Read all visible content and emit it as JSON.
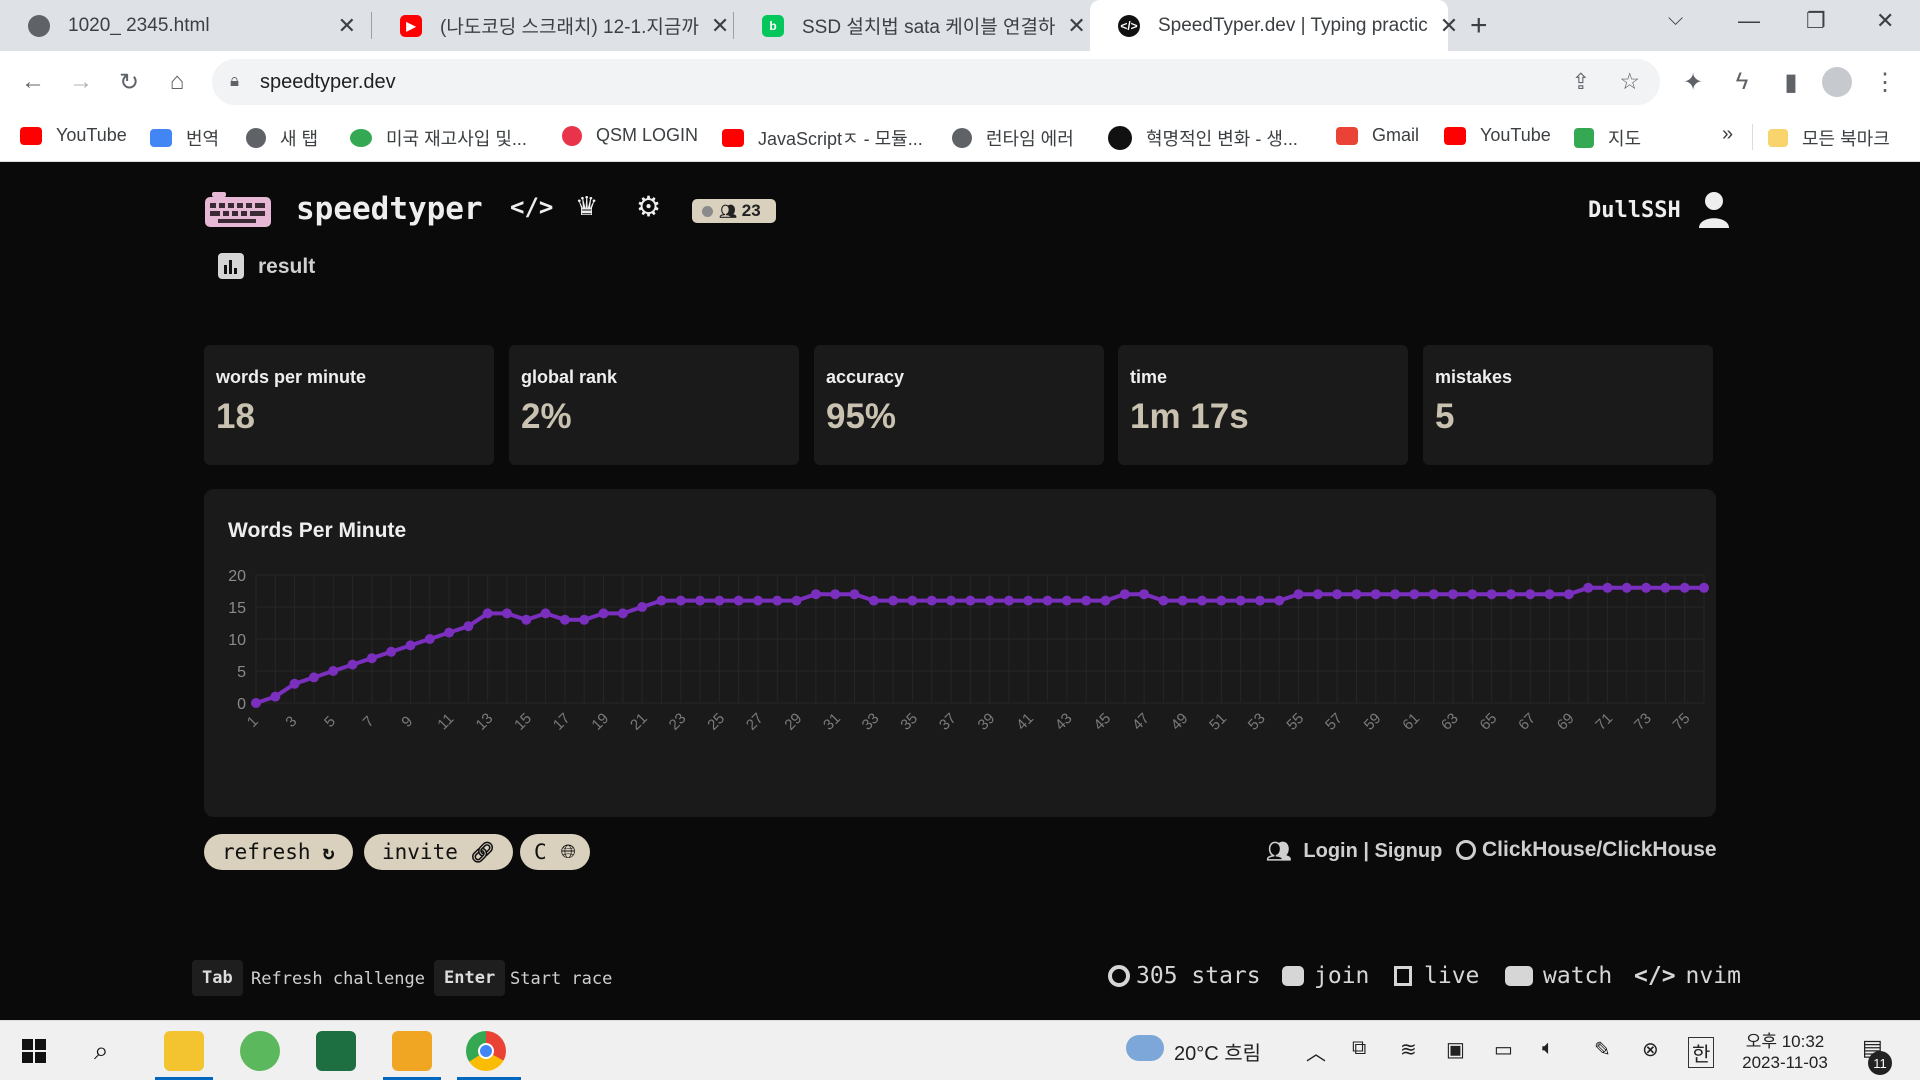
{
  "browser": {
    "tabs": [
      {
        "title": "1020_ 2345.html",
        "icon": "globe-icon"
      },
      {
        "title": "(나도코딩 스크래치) 12-1.지금까",
        "icon": "youtube-icon"
      },
      {
        "title": "SSD 설치법 sata 케이블 연결하",
        "icon": "blog-icon"
      },
      {
        "title": "SpeedTyper.dev | Typing practic",
        "icon": "code-icon"
      }
    ],
    "new_tab": "+",
    "url": "speedtyper.dev",
    "bookmarks": [
      {
        "label": "YouTube",
        "icon": "youtube-icon",
        "color": "#ff0000"
      },
      {
        "label": "번역",
        "icon": "translate-icon",
        "color": "#4285f4"
      },
      {
        "label": "새 탭",
        "icon": "globe-icon",
        "color": "#5f6368"
      },
      {
        "label": "미국 재고사입 및...",
        "icon": "frog-icon",
        "color": "#34a853"
      },
      {
        "label": "QSM LOGIN",
        "icon": "q-icon",
        "color": "#e8334a"
      },
      {
        "label": "JavaScriptㅈ - 모듈...",
        "icon": "youtube-icon",
        "color": "#ff0000"
      },
      {
        "label": "런타임 에러",
        "icon": "globe-icon",
        "color": "#5f6368"
      },
      {
        "label": "혁명적인 변화 - 생...",
        "icon": "circle-icon",
        "color": "#111111"
      },
      {
        "label": "Gmail",
        "icon": "gmail-icon",
        "color": "#ea4335"
      },
      {
        "label": "YouTube",
        "icon": "youtube-icon",
        "color": "#ff0000"
      },
      {
        "label": "지도",
        "icon": "maps-icon",
        "color": "#34a853"
      }
    ],
    "bookmarks_overflow": "»",
    "all_bookmarks": "모든 북마크"
  },
  "site": {
    "brand": "speedtyper",
    "online_count": "23",
    "username": "DullSSH"
  },
  "result": {
    "heading": "result",
    "stats": [
      {
        "label": "words per minute",
        "value": "18"
      },
      {
        "label": "global rank",
        "value": "2%"
      },
      {
        "label": "accuracy",
        "value": "95%"
      },
      {
        "label": "time",
        "value": "1m 17s"
      },
      {
        "label": "mistakes",
        "value": "5"
      }
    ]
  },
  "chart_data": {
    "type": "line",
    "title": "Words Per Minute",
    "xlabel": "",
    "ylabel": "",
    "ylim": [
      0,
      20
    ],
    "yticks": [
      0,
      5,
      10,
      15,
      20
    ],
    "xtick_labels": [
      "1",
      "3",
      "5",
      "7",
      "9",
      "11",
      "13",
      "15",
      "17",
      "19",
      "21",
      "23",
      "25",
      "27",
      "29",
      "31",
      "33",
      "35",
      "37",
      "39",
      "41",
      "43",
      "45",
      "47",
      "49",
      "51",
      "53",
      "55",
      "57",
      "59",
      "61",
      "63",
      "65",
      "67",
      "69",
      "71",
      "73",
      "75"
    ],
    "grid": true,
    "legend": "none",
    "line_color": "#7b2fbe",
    "x": [
      1,
      2,
      3,
      4,
      5,
      6,
      7,
      8,
      9,
      10,
      11,
      12,
      13,
      14,
      15,
      16,
      17,
      18,
      19,
      20,
      21,
      22,
      23,
      24,
      25,
      26,
      27,
      28,
      29,
      30,
      31,
      32,
      33,
      34,
      35,
      36,
      37,
      38,
      39,
      40,
      41,
      42,
      43,
      44,
      45,
      46,
      47,
      48,
      49,
      50,
      51,
      52,
      53,
      54,
      55,
      56,
      57,
      58,
      59,
      60,
      61,
      62,
      63,
      64,
      65,
      66,
      67,
      68,
      69,
      70,
      71,
      72,
      73,
      74,
      75,
      76
    ],
    "series": [
      {
        "values": [
          0,
          1,
          3,
          4,
          5,
          6,
          7,
          8,
          9,
          10,
          11,
          12,
          14,
          14,
          13,
          14,
          13,
          13,
          14,
          14,
          15,
          16,
          16,
          16,
          16,
          16,
          16,
          16,
          16,
          17,
          17,
          17,
          16,
          16,
          16,
          16,
          16,
          16,
          16,
          16,
          16,
          16,
          16,
          16,
          16,
          17,
          17,
          16,
          16,
          16,
          16,
          16,
          16,
          16,
          17,
          17,
          17,
          17,
          17,
          17,
          17,
          17,
          17,
          17,
          17,
          17,
          17,
          17,
          17,
          18,
          18,
          18,
          18,
          18,
          18,
          18
        ]
      }
    ]
  },
  "actions": {
    "refresh": "refresh",
    "invite": "invite",
    "language": "C",
    "login": "Login | Signup",
    "repo": "ClickHouse/ClickHouse"
  },
  "footer": {
    "tab_key": "Tab",
    "tab_desc": "Refresh challenge",
    "enter_key": "Enter",
    "enter_desc": "Start race",
    "stars": "305 stars",
    "join": "join",
    "live": "live",
    "watch": "watch",
    "nvim": "nvim"
  },
  "taskbar": {
    "weather": "20°C 흐림",
    "ime": "한",
    "time": "오후 10:32",
    "date": "2023-11-03",
    "notifications": "11"
  }
}
